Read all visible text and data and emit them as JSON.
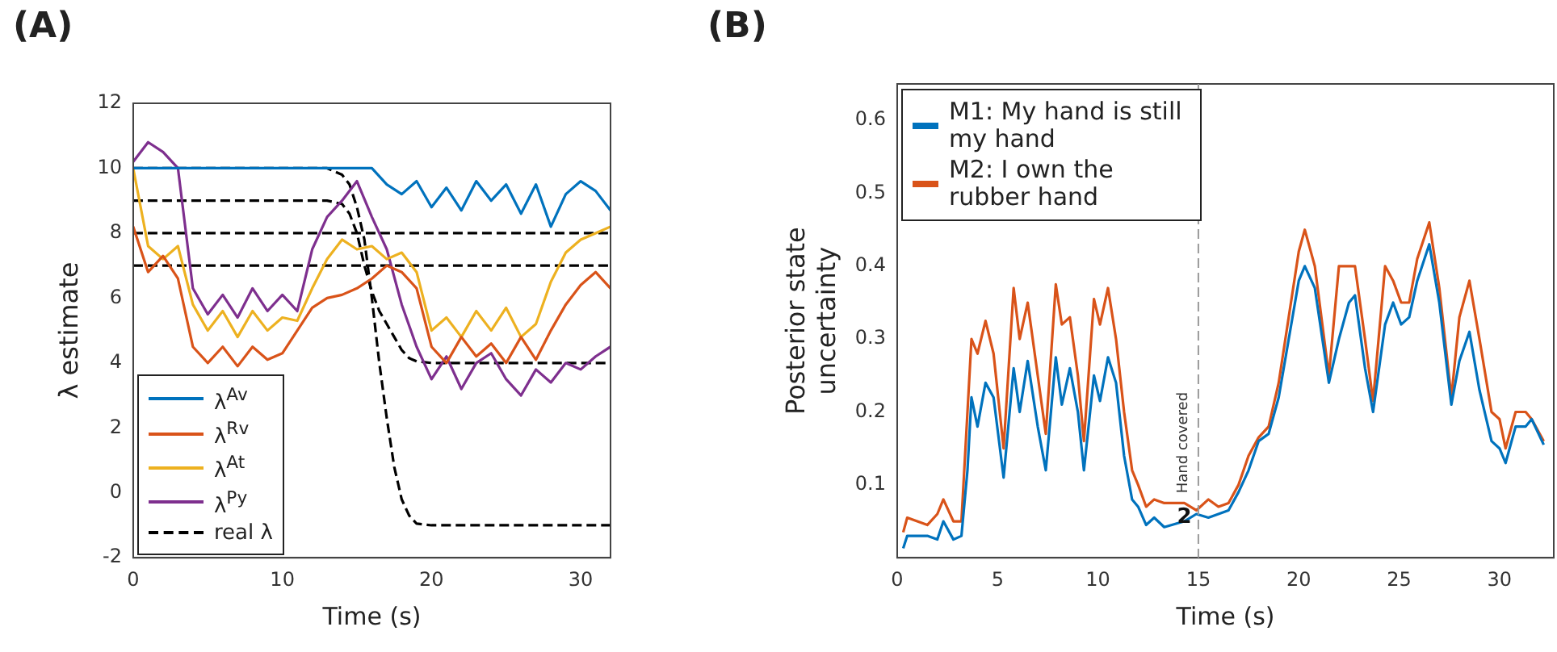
{
  "chart_data": [
    {
      "type": "line",
      "title": "(A)",
      "xlabel": "Time (s)",
      "ylabel": "λ estimate",
      "xlim": [
        0,
        32
      ],
      "xticks": [
        0,
        10,
        20,
        30
      ],
      "ylim": [
        -2,
        12
      ],
      "yticks": [
        -2,
        0,
        2,
        4,
        6,
        8,
        10,
        12
      ],
      "grid": false,
      "legend": "bottom left",
      "x": [
        0,
        1,
        2,
        3,
        4,
        5,
        6,
        7,
        8,
        9,
        10,
        11,
        12,
        13,
        14,
        15,
        16,
        17,
        18,
        19,
        20,
        21,
        22,
        23,
        24,
        25,
        26,
        27,
        28,
        29,
        30,
        31,
        32
      ],
      "series": [
        {
          "name": "λ$^{Av}$",
          "color": "#0072bd",
          "values": [
            10,
            10,
            10,
            10,
            10,
            10,
            10,
            10,
            10,
            10,
            10,
            10,
            10,
            10,
            10,
            10,
            10,
            9.5,
            9.2,
            9.6,
            8.8,
            9.4,
            8.7,
            9.6,
            9.0,
            9.5,
            8.6,
            9.5,
            8.2,
            9.2,
            9.6,
            9.3,
            8.7
          ]
        },
        {
          "name": "λ$^{Rv}$",
          "color": "#d95319",
          "values": [
            8.2,
            6.8,
            7.3,
            6.6,
            4.5,
            4.0,
            4.5,
            3.9,
            4.5,
            4.1,
            4.3,
            5.0,
            5.7,
            6.0,
            6.1,
            6.3,
            6.6,
            7.0,
            6.8,
            6.3,
            4.5,
            4.0,
            4.8,
            4.2,
            4.6,
            4.0,
            4.8,
            4.1,
            5.0,
            5.8,
            6.4,
            6.8,
            6.3
          ]
        },
        {
          "name": "λ$^{At}$",
          "color": "#edb120",
          "values": [
            10,
            7.6,
            7.2,
            7.6,
            5.8,
            5.0,
            5.6,
            4.8,
            5.6,
            5.0,
            5.4,
            5.3,
            6.3,
            7.2,
            7.8,
            7.5,
            7.6,
            7.2,
            7.4,
            6.8,
            5.0,
            5.4,
            4.8,
            5.6,
            5.0,
            5.7,
            4.8,
            5.2,
            6.5,
            7.4,
            7.8,
            8.0,
            8.2
          ]
        },
        {
          "name": "λ$^{Py}$",
          "color": "#7e2f8e",
          "values": [
            10.2,
            10.8,
            10.5,
            10.0,
            6.3,
            5.5,
            6.1,
            5.4,
            6.3,
            5.6,
            6.1,
            5.6,
            7.5,
            8.5,
            9.0,
            9.6,
            8.5,
            7.5,
            5.8,
            4.5,
            3.5,
            4.2,
            3.2,
            4.0,
            4.3,
            3.5,
            3.0,
            3.8,
            3.4,
            4.0,
            3.8,
            4.2,
            4.5
          ]
        },
        {
          "name": "real λ",
          "color": "#000000",
          "line_style": "dashed",
          "x": [
            0,
            13,
            14,
            14.5,
            15,
            15.5,
            16,
            16.5,
            17,
            17.5,
            18,
            18.5,
            19,
            20,
            32
          ],
          "values": [
            10,
            10,
            9.8,
            9.5,
            8.8,
            7.8,
            6,
            4,
            2.3,
            0.8,
            -0.2,
            -0.7,
            -0.95,
            -1,
            -1
          ]
        },
        {
          "color": "#000000",
          "line_style": "dashed",
          "x": [
            0,
            13,
            14,
            14.5,
            15,
            15.5,
            16,
            16.5,
            17,
            17.5,
            18,
            18.5,
            19,
            20,
            32
          ],
          "values": [
            9,
            9,
            8.9,
            8.6,
            8,
            7,
            6.2,
            5.6,
            5.2,
            4.8,
            4.4,
            4.15,
            4.05,
            4,
            4
          ]
        },
        {
          "color": "#000000",
          "line_style": "dashed",
          "x": [
            0,
            32
          ],
          "values": [
            8,
            8
          ]
        },
        {
          "color": "#000000",
          "line_style": "dashed",
          "x": [
            0,
            32
          ],
          "values": [
            7,
            7
          ]
        }
      ]
    },
    {
      "type": "line",
      "title": "(B)",
      "xlabel": "Time (s)",
      "ylabel": "Posterior state uncertainty",
      "xlim": [
        0,
        32.7
      ],
      "xticks": [
        0,
        5,
        10,
        15,
        20,
        25,
        30
      ],
      "ylim": [
        0,
        0.65
      ],
      "yticks": [
        0.1,
        0.2,
        0.3,
        0.4,
        0.5,
        0.6
      ],
      "grid": false,
      "legend": "top left",
      "x": [
        0.3,
        0.5,
        1,
        1.5,
        2,
        2.3,
        2.8,
        3.2,
        3.5,
        3.7,
        4,
        4.4,
        4.8,
        5.3,
        5.8,
        6.1,
        6.5,
        7,
        7.4,
        7.9,
        8.2,
        8.6,
        9,
        9.3,
        9.8,
        10.1,
        10.5,
        10.9,
        11.3,
        11.7,
        12,
        12.4,
        12.8,
        13.3,
        14.3,
        14.9,
        15.5,
        16,
        16.5,
        17,
        17.5,
        18,
        18.5,
        19,
        19.5,
        20,
        20.3,
        20.8,
        21.5,
        22,
        22.5,
        22.8,
        23.3,
        23.7,
        24.3,
        24.7,
        25.1,
        25.5,
        25.9,
        26.5,
        27,
        27.6,
        28,
        28.5,
        29,
        29.6,
        30,
        30.3,
        30.8,
        31.3,
        31.6,
        32.2
      ],
      "series": [
        {
          "name": "M1: My hand is still my hand",
          "color": "#0072bd",
          "values": [
            0.013,
            0.03,
            0.03,
            0.03,
            0.025,
            0.05,
            0.025,
            0.03,
            0.12,
            0.22,
            0.18,
            0.24,
            0.22,
            0.11,
            0.26,
            0.2,
            0.27,
            0.18,
            0.12,
            0.275,
            0.21,
            0.26,
            0.2,
            0.12,
            0.25,
            0.215,
            0.275,
            0.24,
            0.14,
            0.08,
            0.07,
            0.045,
            0.055,
            0.042,
            0.05,
            0.06,
            0.055,
            0.06,
            0.065,
            0.09,
            0.12,
            0.16,
            0.17,
            0.22,
            0.3,
            0.38,
            0.4,
            0.37,
            0.24,
            0.3,
            0.35,
            0.36,
            0.26,
            0.2,
            0.32,
            0.35,
            0.32,
            0.33,
            0.38,
            0.43,
            0.35,
            0.21,
            0.27,
            0.31,
            0.23,
            0.16,
            0.15,
            0.13,
            0.18,
            0.18,
            0.19,
            0.155
          ]
        },
        {
          "name": "M2: I own the rubber hand",
          "color": "#d95319",
          "values": [
            0.035,
            0.055,
            0.05,
            0.045,
            0.06,
            0.08,
            0.05,
            0.05,
            0.2,
            0.3,
            0.28,
            0.325,
            0.28,
            0.15,
            0.37,
            0.3,
            0.35,
            0.25,
            0.17,
            0.375,
            0.32,
            0.33,
            0.25,
            0.16,
            0.355,
            0.32,
            0.37,
            0.3,
            0.2,
            0.12,
            0.1,
            0.07,
            0.08,
            0.075,
            0.075,
            0.065,
            0.08,
            0.07,
            0.075,
            0.1,
            0.14,
            0.165,
            0.18,
            0.24,
            0.33,
            0.42,
            0.45,
            0.4,
            0.25,
            0.4,
            0.4,
            0.4,
            0.3,
            0.215,
            0.4,
            0.38,
            0.35,
            0.35,
            0.41,
            0.46,
            0.37,
            0.22,
            0.33,
            0.38,
            0.3,
            0.2,
            0.19,
            0.15,
            0.2,
            0.2,
            0.19,
            0.16
          ]
        }
      ],
      "ref_lines": [
        {
          "axis": "x",
          "value": 15,
          "label": "Hand covered",
          "color": "#999999",
          "line_style": "dashed"
        }
      ],
      "annotations": [
        {
          "text": "2",
          "x": 14.3,
          "y": 0.055
        }
      ]
    }
  ]
}
